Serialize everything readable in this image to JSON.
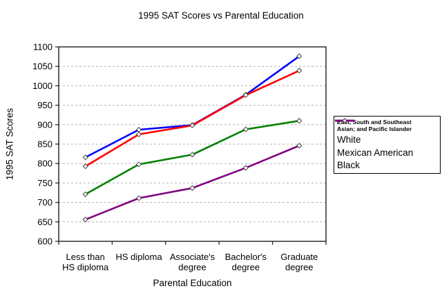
{
  "chart_data": {
    "type": "line",
    "title": "1995 SAT Scores vs Parental Education",
    "xlabel": "Parental Education",
    "ylabel": "1995 SAT Scores",
    "ylim": [
      600,
      1100
    ],
    "yticks": [
      600,
      650,
      700,
      750,
      800,
      850,
      900,
      950,
      1000,
      1050,
      1100
    ],
    "grid": "horizontal-dashed",
    "legend_position": "right",
    "categories": [
      "Less than HS diploma",
      "HS diploma",
      "Associate's degree",
      "Bachelor's degree",
      "Graduate degree"
    ],
    "categories_wrapped": [
      [
        "Less than",
        "HS diploma"
      ],
      [
        "HS diploma"
      ],
      [
        "Associate's",
        "degree"
      ],
      [
        "Bachelor's",
        "degree"
      ],
      [
        "Graduate",
        "degree"
      ]
    ],
    "series": [
      {
        "name": "East, South and Southeast Asian; and Pacific Islander",
        "legend_label": "East, South and Southeast\nAsian; and Pacific Islander",
        "legend_small": true,
        "color": "#0000ff",
        "values": [
          816,
          887,
          899,
          977,
          1076
        ]
      },
      {
        "name": "White",
        "legend_label": "White",
        "legend_small": false,
        "color": "#ff0000",
        "values": [
          793,
          875,
          898,
          976,
          1039
        ]
      },
      {
        "name": "Mexican American",
        "legend_label": "Mexican American",
        "legend_small": false,
        "color": "#008000",
        "values": [
          721,
          798,
          823,
          888,
          910
        ]
      },
      {
        "name": "Black",
        "legend_label": "Black",
        "legend_small": false,
        "color": "#800080",
        "values": [
          656,
          711,
          737,
          789,
          846
        ]
      }
    ],
    "colors": {
      "axis": "#2b2b2b",
      "gridline": "#b0b0b0",
      "marker_fill": "#ffffff",
      "marker_stroke": "#404040",
      "background": "#ffffff"
    }
  }
}
